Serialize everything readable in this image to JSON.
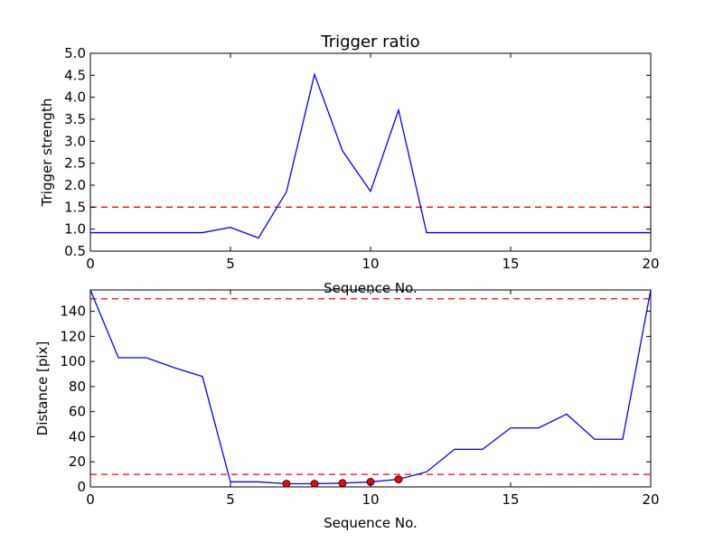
{
  "colors": {
    "series": "#0000ff",
    "reference": "#ff0000",
    "marker": "#ff0000",
    "axes": "#000000"
  },
  "chart_data": [
    {
      "type": "line",
      "title": "Trigger ratio",
      "xlabel": "Sequence No.",
      "ylabel": "Trigger strength",
      "xlim": [
        0,
        20
      ],
      "ylim": [
        0.5,
        5.0
      ],
      "xticks": [
        0,
        5,
        10,
        15,
        20
      ],
      "xtick_labels": [
        "0",
        "5",
        "10",
        "15",
        "20"
      ],
      "yticks": [
        0.5,
        1.0,
        1.5,
        2.0,
        2.5,
        3.0,
        3.5,
        4.0,
        4.5,
        5.0
      ],
      "ytick_labels": [
        "0.5",
        "1.0",
        "1.5",
        "2.0",
        "2.5",
        "3.0",
        "3.5",
        "4.0",
        "4.5",
        "5.0"
      ],
      "grid": false,
      "series": [
        {
          "x": [
            0,
            1,
            2,
            3,
            4,
            5,
            6,
            7,
            8,
            9,
            10,
            11,
            12,
            13,
            14,
            15,
            16,
            17,
            18,
            19,
            20
          ],
          "values": [
            0.92,
            0.92,
            0.92,
            0.92,
            0.92,
            1.04,
            0.8,
            1.85,
            4.52,
            2.78,
            1.86,
            3.71,
            0.92,
            0.92,
            0.92,
            0.92,
            0.92,
            0.92,
            0.92,
            0.92,
            0.92
          ]
        }
      ],
      "reference_lines": [
        {
          "y": 1.5
        }
      ],
      "markers": []
    },
    {
      "type": "line",
      "title": "",
      "xlabel": "Sequence No.",
      "ylabel": "Distance [pix]",
      "xlim": [
        0,
        20
      ],
      "ylim": [
        0,
        157
      ],
      "xticks": [
        0,
        5,
        10,
        15,
        20
      ],
      "xtick_labels": [
        "0",
        "5",
        "10",
        "15",
        "20"
      ],
      "yticks": [
        0,
        20,
        40,
        60,
        80,
        100,
        120,
        140
      ],
      "ytick_labels": [
        "0",
        "20",
        "40",
        "60",
        "80",
        "100",
        "120",
        "140"
      ],
      "grid": false,
      "series": [
        {
          "x": [
            0,
            1,
            2,
            3,
            4,
            5,
            6,
            7,
            8,
            9,
            10,
            11,
            12,
            13,
            14,
            15,
            16,
            17,
            18,
            19,
            20
          ],
          "values": [
            157,
            103,
            103,
            95,
            88,
            4,
            4,
            2.5,
            2.5,
            3,
            4,
            6,
            12,
            30,
            30,
            47,
            47,
            58,
            38,
            38,
            157
          ]
        }
      ],
      "reference_lines": [
        {
          "y": 150
        },
        {
          "y": 10
        }
      ],
      "markers": [
        {
          "x": 7,
          "y": 2.5
        },
        {
          "x": 8,
          "y": 2.5
        },
        {
          "x": 9,
          "y": 3
        },
        {
          "x": 10,
          "y": 4
        },
        {
          "x": 11,
          "y": 6
        }
      ]
    }
  ]
}
